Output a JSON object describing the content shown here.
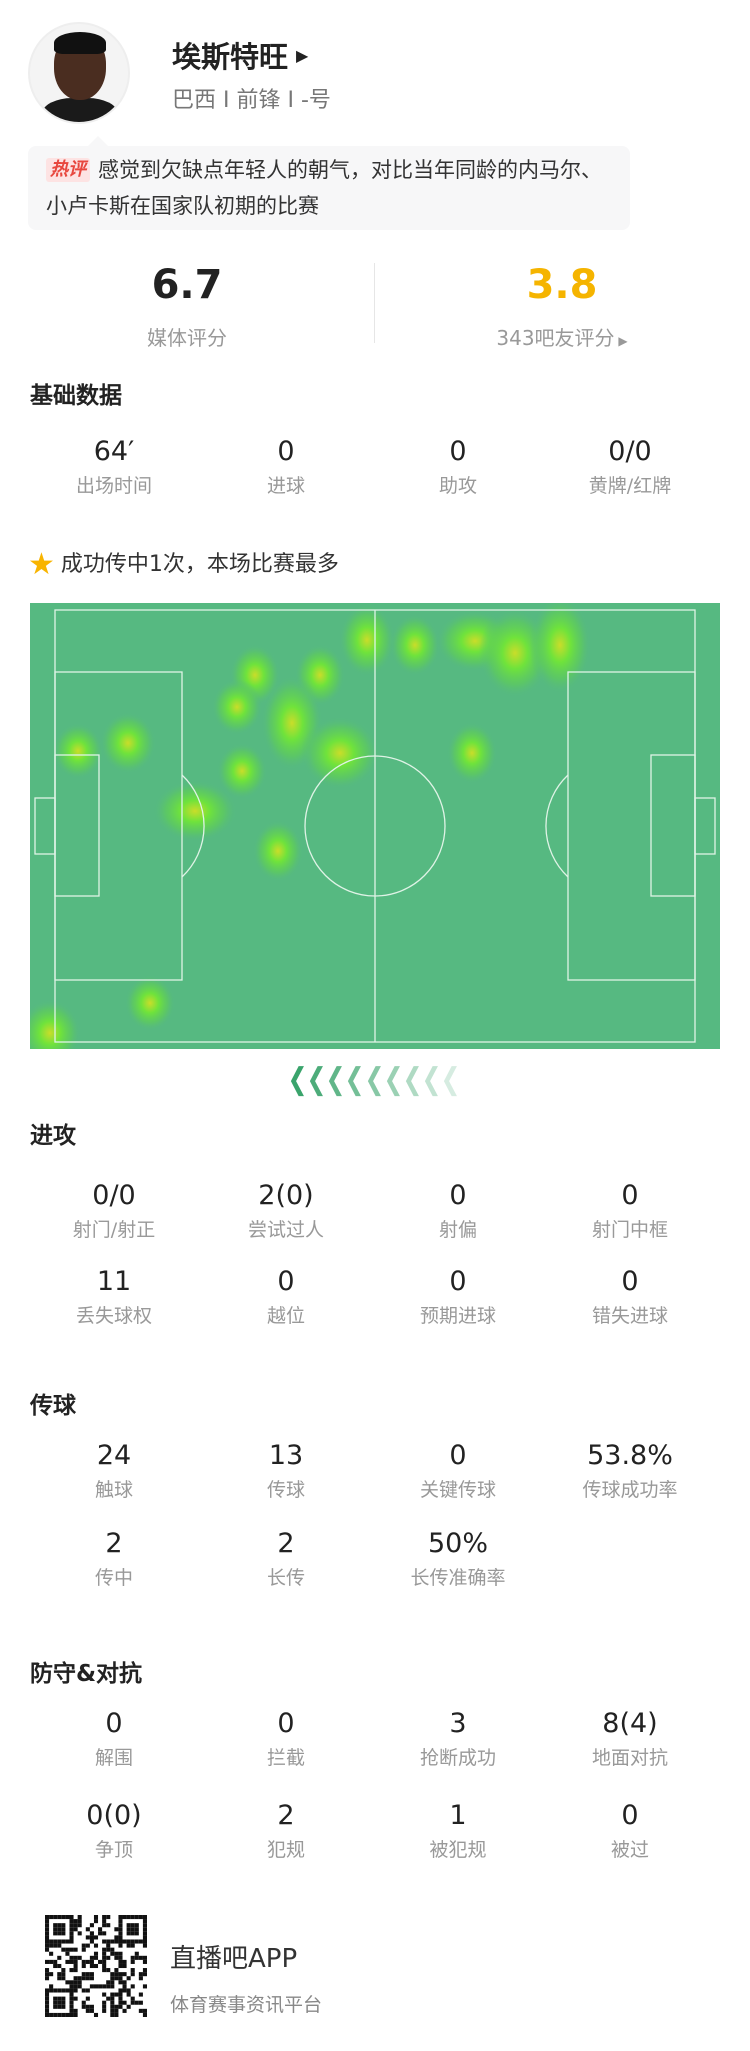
{
  "player": {
    "name": "埃斯特旺",
    "arrow_icon": "triangle-right",
    "info": "巴西 I 前锋 I -号"
  },
  "comment": {
    "tag": "热评",
    "text": "感觉到欠缺点年轻人的朝气，对比当年同龄的内马尔、小卢卡斯在国家队初期的比赛"
  },
  "ratings": {
    "media_value": "6.7",
    "media_label": "媒体评分",
    "fan_value": "3.8",
    "fan_label": "343吧友评分",
    "fan_color": "#f5b400"
  },
  "basic": {
    "title": "基础数据",
    "stats": [
      {
        "v": "64′",
        "l": "出场时间"
      },
      {
        "v": "0",
        "l": "进球"
      },
      {
        "v": "0",
        "l": "助攻"
      },
      {
        "v": "0/0",
        "l": "黄牌/红牌"
      }
    ]
  },
  "highlight": {
    "icon": "star",
    "text": "成功传中1次，本场比赛最多"
  },
  "heatmap": {
    "pitch_color": "#56b981",
    "attack_direction": "left"
  },
  "attack": {
    "title": "进攻",
    "stats": [
      {
        "v": "0/0",
        "l": "射门/射正"
      },
      {
        "v": "2(0)",
        "l": "尝试过人"
      },
      {
        "v": "0",
        "l": "射偏"
      },
      {
        "v": "0",
        "l": "射门中框"
      },
      {
        "v": "11",
        "l": "丢失球权"
      },
      {
        "v": "0",
        "l": "越位"
      },
      {
        "v": "0",
        "l": "预期进球"
      },
      {
        "v": "0",
        "l": "错失进球"
      }
    ]
  },
  "passing": {
    "title": "传球",
    "stats": [
      {
        "v": "24",
        "l": "触球"
      },
      {
        "v": "13",
        "l": "传球"
      },
      {
        "v": "0",
        "l": "关键传球"
      },
      {
        "v": "53.8%",
        "l": "传球成功率"
      },
      {
        "v": "2",
        "l": "传中"
      },
      {
        "v": "2",
        "l": "长传"
      },
      {
        "v": "50%",
        "l": "长传准确率"
      }
    ]
  },
  "defense": {
    "title": "防守&对抗",
    "stats": [
      {
        "v": "0",
        "l": "解围"
      },
      {
        "v": "0",
        "l": "拦截"
      },
      {
        "v": "3",
        "l": "抢断成功"
      },
      {
        "v": "8(4)",
        "l": "地面对抗"
      },
      {
        "v": "0(0)",
        "l": "争顶"
      },
      {
        "v": "2",
        "l": "犯规"
      },
      {
        "v": "1",
        "l": "被犯规"
      },
      {
        "v": "0",
        "l": "被过"
      }
    ]
  },
  "footer": {
    "app_name": "直播吧APP",
    "app_sub": "体育赛事资讯平台"
  }
}
